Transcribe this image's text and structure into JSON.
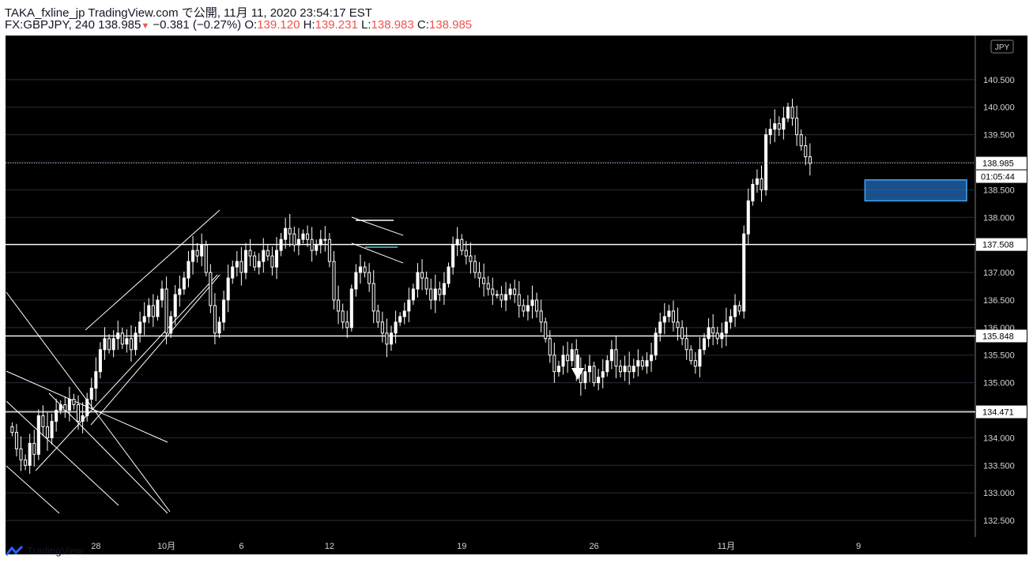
{
  "header": {
    "line1": "TAKA_fxline_jp TradingView.com で公開, 11月 11, 2020 23:54:17 EST",
    "symbol": "FX:GBPJPY, 240",
    "last": "138.985",
    "change": "−0.381 (−0.27%)",
    "o_label": "O:",
    "o_value": "139.120",
    "h_label": "H:",
    "h_value": "139.231",
    "l_label": "L:",
    "l_value": "138.983",
    "c_label": "C:",
    "c_value": "138.985"
  },
  "footer": {
    "brand": "TradingView"
  },
  "colors": {
    "background": "#000000",
    "grid": "#2a2e39",
    "candle": "#ffffff",
    "zone_fill": "#1f5fa6",
    "zone_stroke": "#42a5f5",
    "bear": "#ef5350"
  },
  "chart_data": {
    "type": "candlestick",
    "currency_label": "JPY",
    "ylim": [
      132.2,
      141.3
    ],
    "y_ticks": [
      132.5,
      133.0,
      133.5,
      134.0,
      134.5,
      135.0,
      135.5,
      136.0,
      136.5,
      137.0,
      137.5,
      138.0,
      138.5,
      139.0,
      139.5,
      140.0,
      140.5
    ],
    "y_tick_labels": [
      "132.500",
      "133.000",
      "133.500",
      "134.000",
      "",
      "135.000",
      "135.500",
      "136.000",
      "136.500",
      "137.000",
      "",
      "138.000",
      "138.500",
      "",
      "139.500",
      "140.000",
      "140.500"
    ],
    "x_labels": [
      {
        "label": "28",
        "index": 20
      },
      {
        "label": "10月",
        "index": 36
      },
      {
        "label": "6",
        "index": 53
      },
      {
        "label": "12",
        "index": 73
      },
      {
        "label": "19",
        "index": 103
      },
      {
        "label": "26",
        "index": 133
      },
      {
        "label": "11月",
        "index": 163
      },
      {
        "label": "9",
        "index": 193
      }
    ],
    "horizontal_levels": [
      137.508,
      135.848,
      134.471
    ],
    "level_labels": [
      "137.508",
      "135.848",
      "134.471"
    ],
    "last_price": 138.985,
    "last_price_label": "138.985",
    "countdown_label": "01:05:44",
    "zone": {
      "from_index": 195,
      "to_index": 217,
      "low": 138.3,
      "high": 138.68
    },
    "closes": [
      134.1,
      133.8,
      133.6,
      133.5,
      133.9,
      133.7,
      134.4,
      134.2,
      134.0,
      134.3,
      134.5,
      134.6,
      134.5,
      134.7,
      134.6,
      134.3,
      134.4,
      134.7,
      134.9,
      135.2,
      135.6,
      135.8,
      135.6,
      135.8,
      135.9,
      135.7,
      135.8,
      135.6,
      135.9,
      136.1,
      136.2,
      136.4,
      136.2,
      136.5,
      136.7,
      135.9,
      136.2,
      136.6,
      136.7,
      136.9,
      137.2,
      137.4,
      137.3,
      137.5,
      137.0,
      136.4,
      135.9,
      136.1,
      136.5,
      136.9,
      137.1,
      137.2,
      137.0,
      137.4,
      137.3,
      137.1,
      137.2,
      137.4,
      137.3,
      137.1,
      137.4,
      137.6,
      137.8,
      137.7,
      137.5,
      137.6,
      137.7,
      137.6,
      137.4,
      137.5,
      137.6,
      137.6,
      137.2,
      136.5,
      136.3,
      136.1,
      136.0,
      136.7,
      137.0,
      137.1,
      137.0,
      136.8,
      136.3,
      136.1,
      135.9,
      135.7,
      135.9,
      136.1,
      136.2,
      136.3,
      136.5,
      136.7,
      137.0,
      136.9,
      136.7,
      136.5,
      136.7,
      136.6,
      136.8,
      137.1,
      137.5,
      137.6,
      137.4,
      137.3,
      137.2,
      137.0,
      136.9,
      136.8,
      136.7,
      136.6,
      136.6,
      136.5,
      136.6,
      136.7,
      136.6,
      136.4,
      136.3,
      136.4,
      136.5,
      136.3,
      136.1,
      135.8,
      135.5,
      135.2,
      135.3,
      135.5,
      135.4,
      135.6,
      135.2,
      135.0,
      135.2,
      135.3,
      135.0,
      135.1,
      135.2,
      135.4,
      135.6,
      135.3,
      135.2,
      135.3,
      135.2,
      135.3,
      135.4,
      135.3,
      135.4,
      135.5,
      135.9,
      136.1,
      136.2,
      136.3,
      136.1,
      136.0,
      135.8,
      135.6,
      135.4,
      135.3,
      135.6,
      135.8,
      136.0,
      135.9,
      135.8,
      135.9,
      136.1,
      136.2,
      136.4,
      136.3,
      137.7,
      138.3,
      138.6,
      138.7,
      138.5,
      139.5,
      139.6,
      139.7,
      139.6,
      139.8,
      140.0,
      139.8,
      139.5,
      139.3,
      139.1,
      138.98
    ],
    "candles_start_index": 1,
    "annotation": "down-arrow"
  }
}
